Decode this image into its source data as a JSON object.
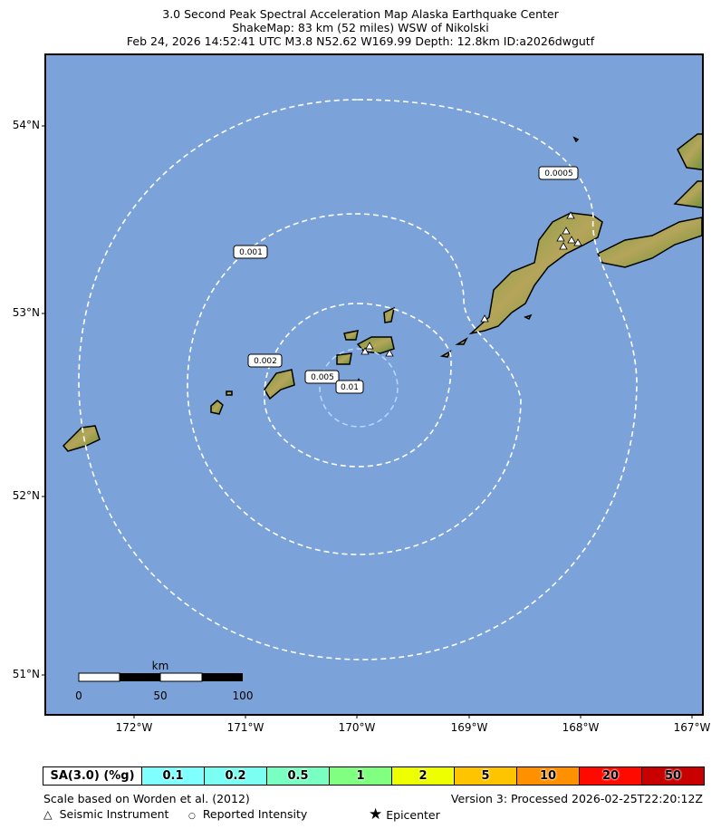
{
  "title": {
    "line1": "3.0 Second Peak Spectral Acceleration Map Alaska Earthquake Center",
    "line2": "ShakeMap: 83 km (52 miles) WSW of Nikolski",
    "line3": "Feb 24, 2026 14:52:41 UTC M3.8 N52.62 W169.99 Depth: 12.8km ID:a2026dwgutf"
  },
  "map": {
    "ocean_color": "#7ba3da",
    "lat_ticks": [
      "54°N",
      "53°N",
      "52°N",
      "51°N"
    ],
    "lon_ticks": [
      "172°W",
      "171°W",
      "170°W",
      "169°W",
      "168°W",
      "167°W"
    ],
    "contour_labels": [
      "0.0005",
      "0.001",
      "0.002",
      "0.005",
      "0.01"
    ],
    "scale_bar": {
      "unit": "km",
      "labels": [
        "0",
        "50",
        "100"
      ]
    },
    "epicenter": {
      "lat": 52.62,
      "lon": -169.99,
      "icon": "star-icon"
    }
  },
  "legend": {
    "label": "SA(3.0) (%g)",
    "bins": [
      {
        "value": "0.1",
        "color": "#80ffff"
      },
      {
        "value": "0.2",
        "color": "#7afff2"
      },
      {
        "value": "0.5",
        "color": "#7affc2"
      },
      {
        "value": "1",
        "color": "#80ff80"
      },
      {
        "value": "2",
        "color": "#eeff00"
      },
      {
        "value": "5",
        "color": "#ffc400"
      },
      {
        "value": "10",
        "color": "#ff9100"
      },
      {
        "value": "20",
        "color": "#ff0a00"
      },
      {
        "value": "50",
        "color": "#c80000"
      }
    ]
  },
  "footer": {
    "scale_note": "Scale based on Worden et al. (2012)",
    "version": "Version 3: Processed 2026-02-25T22:20:12Z",
    "seismic": "Seismic Instrument",
    "reported": "Reported Intensity",
    "epicenter": "Epicenter"
  }
}
